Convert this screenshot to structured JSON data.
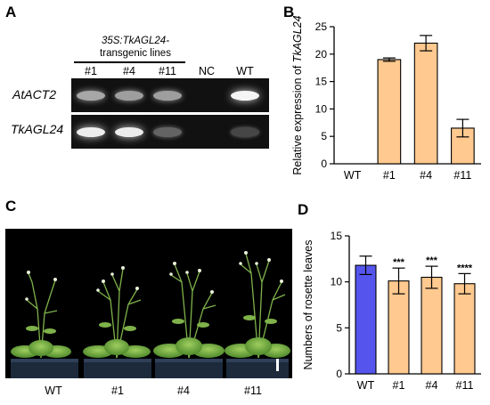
{
  "panels": {
    "A": "A",
    "B": "B",
    "C": "C",
    "D": "D"
  },
  "panel_a": {
    "group_title_line1": "35S:TkAGL24-",
    "group_title_line2": "transgenic lines",
    "lanes": [
      "#1",
      "#4",
      "#11",
      "NC",
      "WT"
    ],
    "genes": [
      "AtACT2",
      "TkAGL24"
    ],
    "band_intensity": {
      "AtACT2": [
        0.55,
        0.5,
        0.5,
        0.0,
        0.95
      ],
      "TkAGL24": [
        0.9,
        0.9,
        0.2,
        0.0,
        0.05
      ]
    }
  },
  "panel_c": {
    "labels": [
      "WT",
      "#1",
      "#4",
      "#11"
    ]
  },
  "chart_data": [
    {
      "type": "bar",
      "panel": "B",
      "categories": [
        "WT",
        "#1",
        "#4",
        "#11"
      ],
      "values": [
        0,
        19,
        22,
        6.5
      ],
      "errors": [
        0,
        0.3,
        1.4,
        1.6
      ],
      "ylabel": "Relative expression of TkAGL24",
      "ylabel_prefix": "Relative expression of ",
      "ylabel_gene": "TkAGL24",
      "ylim": [
        0,
        25
      ],
      "yticks": [
        0,
        5,
        10,
        15,
        20,
        25
      ],
      "bar_color": "#FFC98F",
      "grid": false
    },
    {
      "type": "bar",
      "panel": "D",
      "categories": [
        "WT",
        "#1",
        "#4",
        "#11"
      ],
      "values": [
        11.8,
        10.1,
        10.5,
        9.8
      ],
      "errors": [
        1.0,
        1.4,
        1.2,
        1.1
      ],
      "significance": [
        "",
        "***",
        "***",
        "****"
      ],
      "ylabel": "Numbers of rosette leaves",
      "ylim": [
        0,
        15
      ],
      "yticks": [
        0,
        5,
        10,
        15
      ],
      "bar_colors": [
        "#5555EE",
        "#FFC98F",
        "#FFC98F",
        "#FFC98F"
      ],
      "grid": false
    }
  ]
}
